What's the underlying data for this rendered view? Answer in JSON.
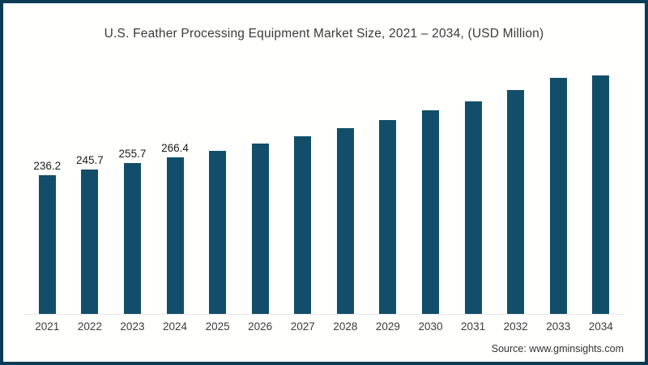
{
  "title": "U.S. Feather Processing Equipment Market Size, 2021 – 2034, (USD Million)",
  "source": "Source: www.gminsights.com",
  "colors": {
    "bar": "#124e69",
    "frame": "#0c3b55",
    "baseline": "#e8e8e5",
    "title_text": "#3a3a3a",
    "label_text": "#1d1d1d"
  },
  "chart_data": {
    "type": "bar",
    "title": "U.S. Feather Processing Equipment Market Size, 2021 – 2034, (USD Million)",
    "categories": [
      "2021",
      "2022",
      "2023",
      "2024",
      "2025",
      "2026",
      "2027",
      "2028",
      "2029",
      "2030",
      "2031",
      "2032",
      "2033",
      "2034"
    ],
    "values": [
      236.2,
      245.7,
      255.7,
      266.4,
      276.8,
      289.2,
      301.6,
      315.3,
      329.1,
      345.6,
      360.8,
      380.1,
      400.7,
      420.0
    ],
    "data_labels": [
      "236.2",
      "245.7",
      "255.7",
      "266.4",
      "",
      "",
      "",
      "",
      "",
      "",
      "",
      "",
      "",
      ""
    ],
    "xlabel": "",
    "ylabel": "",
    "ylim": [
      0,
      430
    ],
    "grid": false,
    "legend_position": "none",
    "y_axis_visible": false
  }
}
